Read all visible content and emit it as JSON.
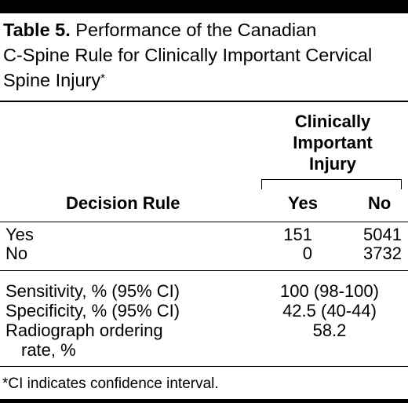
{
  "caption": {
    "label": "Table 5.",
    "line1": " Performance of the Canadian",
    "line2": "C-Spine Rule for Clinically Important Cervical",
    "line3": "Spine Injury",
    "mark": "*"
  },
  "header": {
    "group_line1": "Clinically",
    "group_line2": "Important",
    "group_line3": "Injury",
    "rule_col": "Decision Rule",
    "yes_col": "Yes",
    "no_col": "No"
  },
  "rows": [
    {
      "label": "Yes",
      "yes": "151",
      "no": "5041"
    },
    {
      "label": "No",
      "yes": "0",
      "no": "3732"
    }
  ],
  "metrics": [
    {
      "label": "Sensitivity, % (95% CI)",
      "value": "100 (98-100)"
    },
    {
      "label": "Specificity, % (95% CI)",
      "value": "42.5 (40-44)"
    },
    {
      "label": "Radiograph ordering",
      "label_cont": "rate, %",
      "value": "58.2"
    }
  ],
  "footnote": "*CI indicates confidence interval."
}
